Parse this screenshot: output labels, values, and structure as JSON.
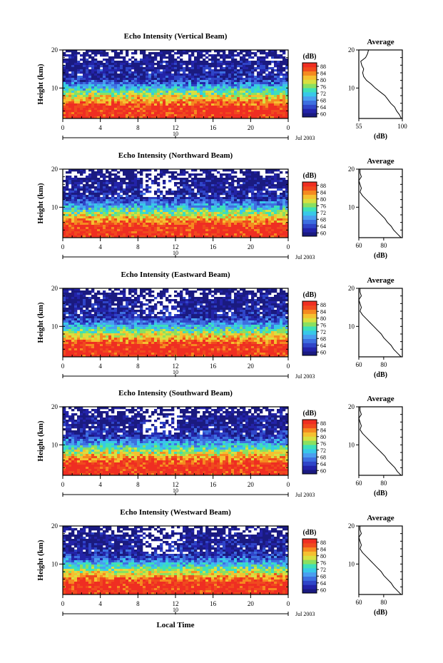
{
  "colorbar": {
    "unit": "(dB)",
    "ticks": [
      "60",
      "64",
      "68",
      "72",
      "76",
      "80",
      "84",
      "88"
    ],
    "colors": [
      "#1a1a80",
      "#2323a8",
      "#2f45c8",
      "#3d6fe0",
      "#4a9ef0",
      "#38c8e8",
      "#3ee0b8",
      "#8ae060",
      "#d8e040",
      "#f5c030",
      "#f58a20",
      "#f04a1e",
      "#ef2e22"
    ]
  },
  "date_label": "Jul 2003",
  "x_tick_labels": [
    "0",
    "4",
    "8",
    "12",
    "16",
    "20",
    "0"
  ],
  "date_marker": "10",
  "x_label": "Local Time",
  "y_label": "Height (km)",
  "y_tick_labels": [
    "20",
    "10"
  ],
  "avg_title": "Average",
  "avg_xlabel": "(dB)",
  "chart_data": [
    {
      "type": "heatmap",
      "title": "Echo Intensity (Vertical Beam)",
      "xlabel": "",
      "ylabel": "Height (km)",
      "x_range_hours": [
        0,
        24
      ],
      "y_range_km": [
        2,
        20
      ],
      "z_range_db": [
        60,
        88
      ],
      "description_values": {
        "low_height_db": 88,
        "high_height_db": 60
      },
      "average_profile": {
        "xlim": [
          55,
          100
        ],
        "x_ticks": [
          "55",
          "100"
        ],
        "ylim": [
          2,
          20
        ],
        "height_km": [
          2,
          3,
          4,
          5,
          6,
          7,
          8,
          9,
          10,
          11,
          12,
          13,
          14,
          15,
          16,
          17,
          18,
          19,
          20
        ],
        "db": [
          99,
          97,
          94,
          92,
          88,
          85,
          82,
          77,
          72,
          68,
          63,
          60,
          59,
          60,
          58,
          57,
          62,
          64,
          65
        ]
      }
    },
    {
      "type": "heatmap",
      "title": "Echo Intensity (Northward Beam)",
      "xlabel": "",
      "ylabel": "Height (km)",
      "x_range_hours": [
        0,
        24
      ],
      "y_range_km": [
        2,
        20
      ],
      "z_range_db": [
        60,
        88
      ],
      "average_profile": {
        "xlim": [
          60,
          95
        ],
        "x_ticks": [
          "60",
          "80"
        ],
        "ylim": [
          2,
          20
        ],
        "height_km": [
          2,
          3,
          4,
          5,
          6,
          7,
          8,
          9,
          10,
          11,
          12,
          13,
          14,
          15,
          16,
          17,
          18,
          19,
          20
        ],
        "db": [
          94,
          91,
          88,
          86,
          83,
          81,
          78,
          75,
          72,
          69,
          66,
          63,
          61,
          62,
          61,
          60,
          62,
          61,
          61
        ]
      }
    },
    {
      "type": "heatmap",
      "title": "Echo Intensity (Eastward Beam)",
      "xlabel": "",
      "ylabel": "Height (km)",
      "x_range_hours": [
        0,
        24
      ],
      "y_range_km": [
        2,
        20
      ],
      "z_range_db": [
        60,
        88
      ],
      "average_profile": {
        "xlim": [
          60,
          95
        ],
        "x_ticks": [
          "60",
          "80"
        ],
        "ylim": [
          2,
          20
        ],
        "height_km": [
          2,
          3,
          4,
          5,
          6,
          7,
          8,
          9,
          10,
          11,
          12,
          13,
          14,
          15,
          16,
          17,
          18,
          19,
          20
        ],
        "db": [
          94,
          91,
          88,
          86,
          83,
          80,
          78,
          75,
          72,
          69,
          66,
          63,
          61,
          62,
          61,
          60,
          62,
          61,
          61
        ]
      }
    },
    {
      "type": "heatmap",
      "title": "Echo Intensity (Southward Beam)",
      "xlabel": "",
      "ylabel": "Height (km)",
      "x_range_hours": [
        0,
        24
      ],
      "y_range_km": [
        2,
        20
      ],
      "z_range_db": [
        60,
        88
      ],
      "average_profile": {
        "xlim": [
          60,
          95
        ],
        "x_ticks": [
          "60",
          "80"
        ],
        "ylim": [
          2,
          20
        ],
        "height_km": [
          2,
          3,
          4,
          5,
          6,
          7,
          8,
          9,
          10,
          11,
          12,
          13,
          14,
          15,
          16,
          17,
          18,
          19,
          20
        ],
        "db": [
          94,
          91,
          89,
          86,
          83,
          81,
          78,
          75,
          72,
          69,
          66,
          63,
          61,
          62,
          61,
          60,
          62,
          61,
          61
        ]
      }
    },
    {
      "type": "heatmap",
      "title": "Echo Intensity (Westward Beam)",
      "xlabel": "Local Time",
      "ylabel": "Height (km)",
      "x_range_hours": [
        0,
        24
      ],
      "y_range_km": [
        2,
        20
      ],
      "z_range_db": [
        60,
        88
      ],
      "average_profile": {
        "xlim": [
          60,
          95
        ],
        "x_ticks": [
          "60",
          "80"
        ],
        "ylim": [
          2,
          20
        ],
        "height_km": [
          2,
          3,
          4,
          5,
          6,
          7,
          8,
          9,
          10,
          11,
          12,
          13,
          14,
          15,
          16,
          17,
          18,
          19,
          20
        ],
        "db": [
          94,
          91,
          88,
          86,
          83,
          80,
          78,
          75,
          72,
          69,
          66,
          63,
          61,
          62,
          61,
          60,
          62,
          61,
          61
        ]
      }
    }
  ]
}
